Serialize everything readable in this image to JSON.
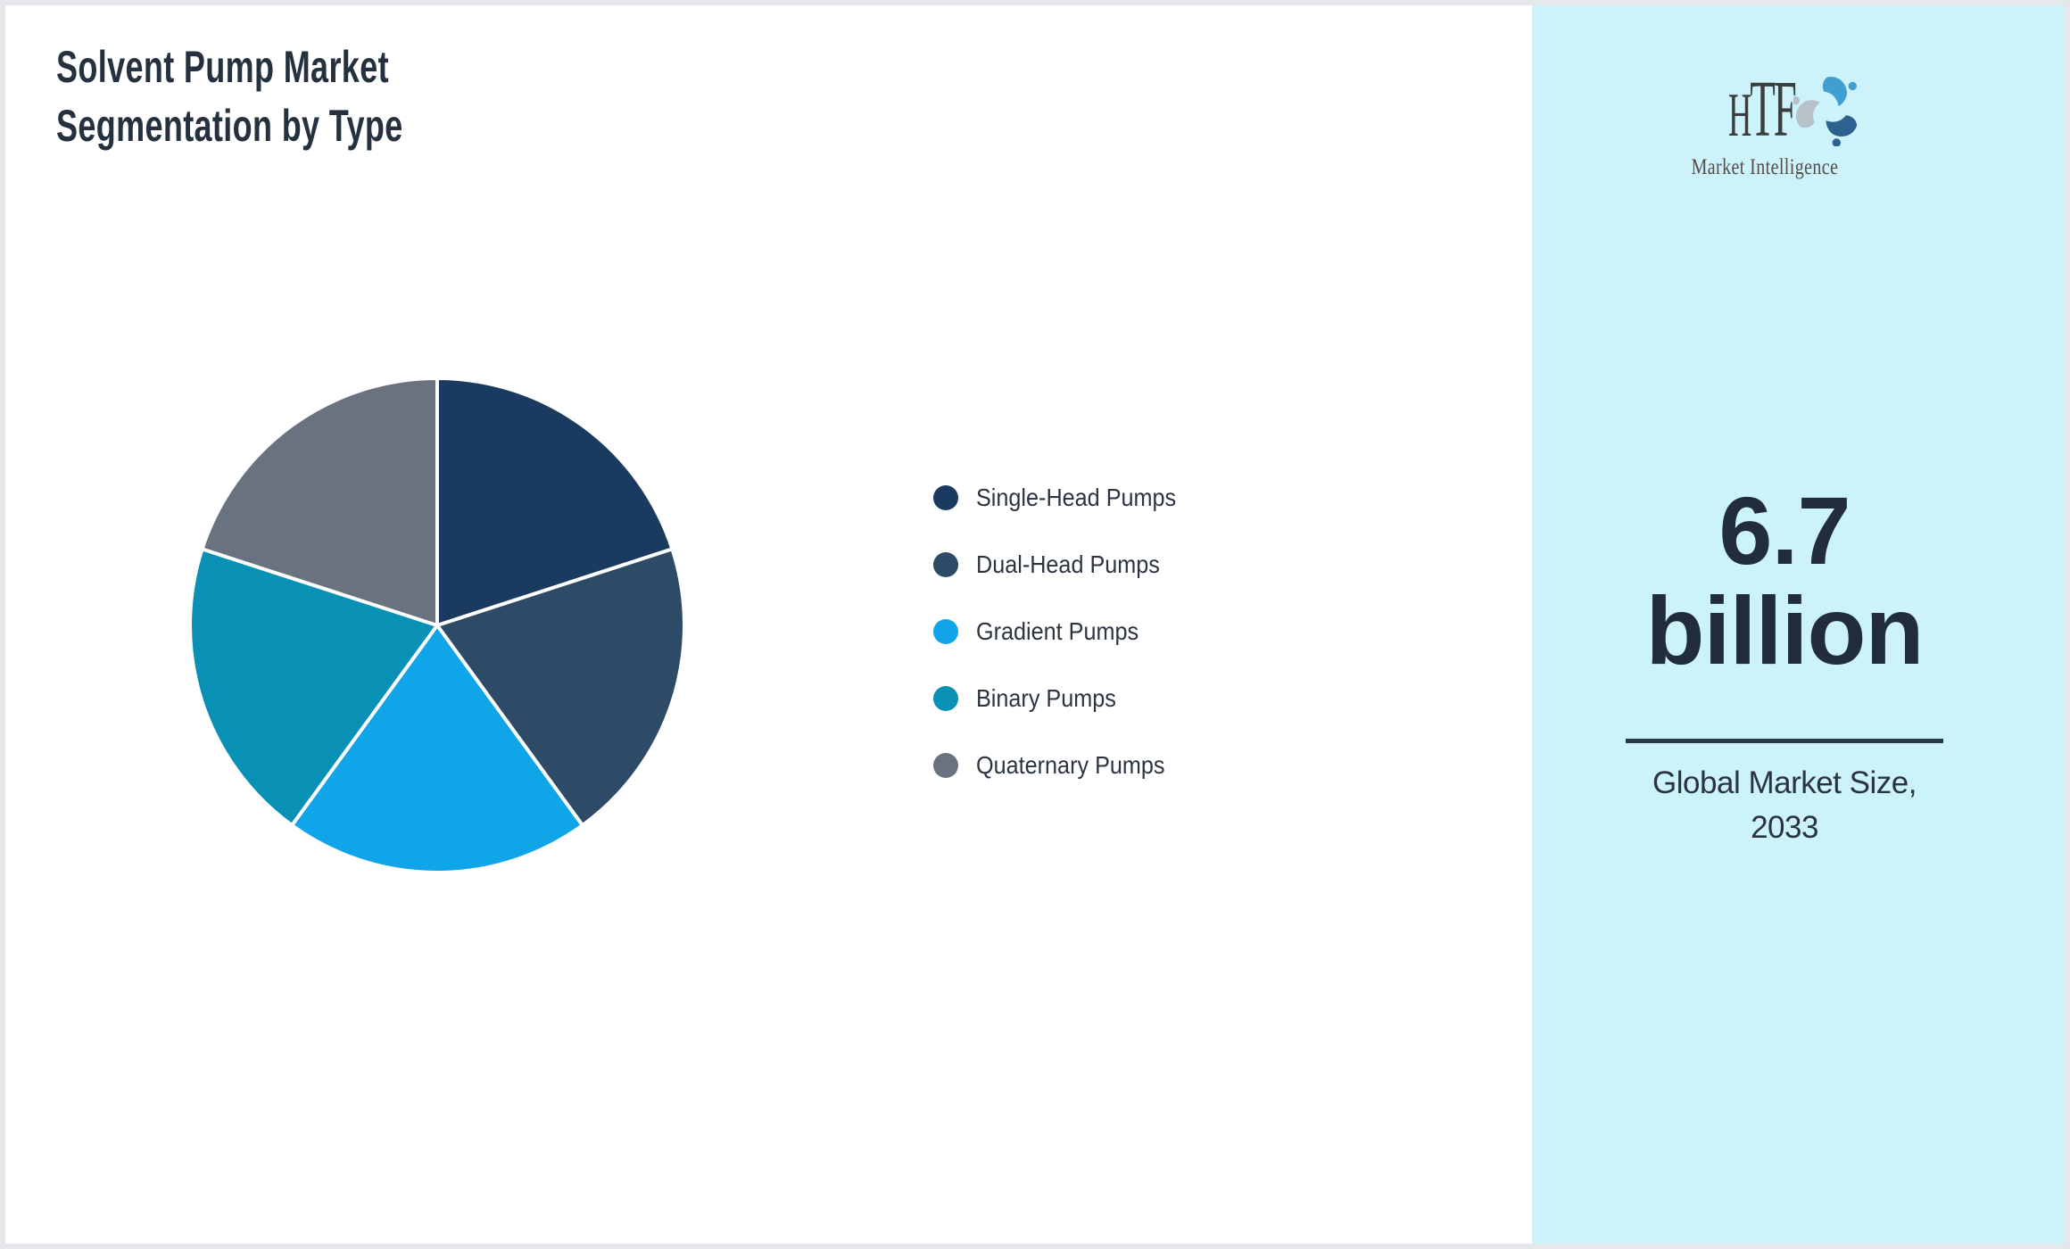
{
  "header": {
    "title_line1": "Solvent Pump Market",
    "title_line2": "Segmentation by Type"
  },
  "chart_data": {
    "type": "pie",
    "title": "Solvent Pump Market Segmentation by Type",
    "labels": [
      "Single-Head Pumps",
      "Dual-Head Pumps",
      "Gradient Pumps",
      "Binary Pumps",
      "Quaternary Pumps"
    ],
    "values": [
      20,
      20,
      20,
      20,
      20
    ],
    "colors": [
      "#1b3a60",
      "#2d4a66",
      "#10a5e8",
      "#0891b4",
      "#6a7280"
    ],
    "start_angle_deg": -90,
    "direction": "clockwise",
    "slice_border_color": "#ffffff",
    "legend_position": "right"
  },
  "sidebar": {
    "logo": {
      "text": "HTF",
      "subtext": "Market Intelligence",
      "icon": "dolphin-swirl-icon"
    },
    "market_size": {
      "value_line1": "6.7",
      "value_line2": "billion",
      "label_line1": "Global Market Size,",
      "label_line2": "2033"
    }
  },
  "theme": {
    "accent_panel_bg": "#ccf3fb",
    "text_dark": "#263140",
    "stat_text": "#212d3b",
    "frame_border": "#e5e7eb"
  }
}
